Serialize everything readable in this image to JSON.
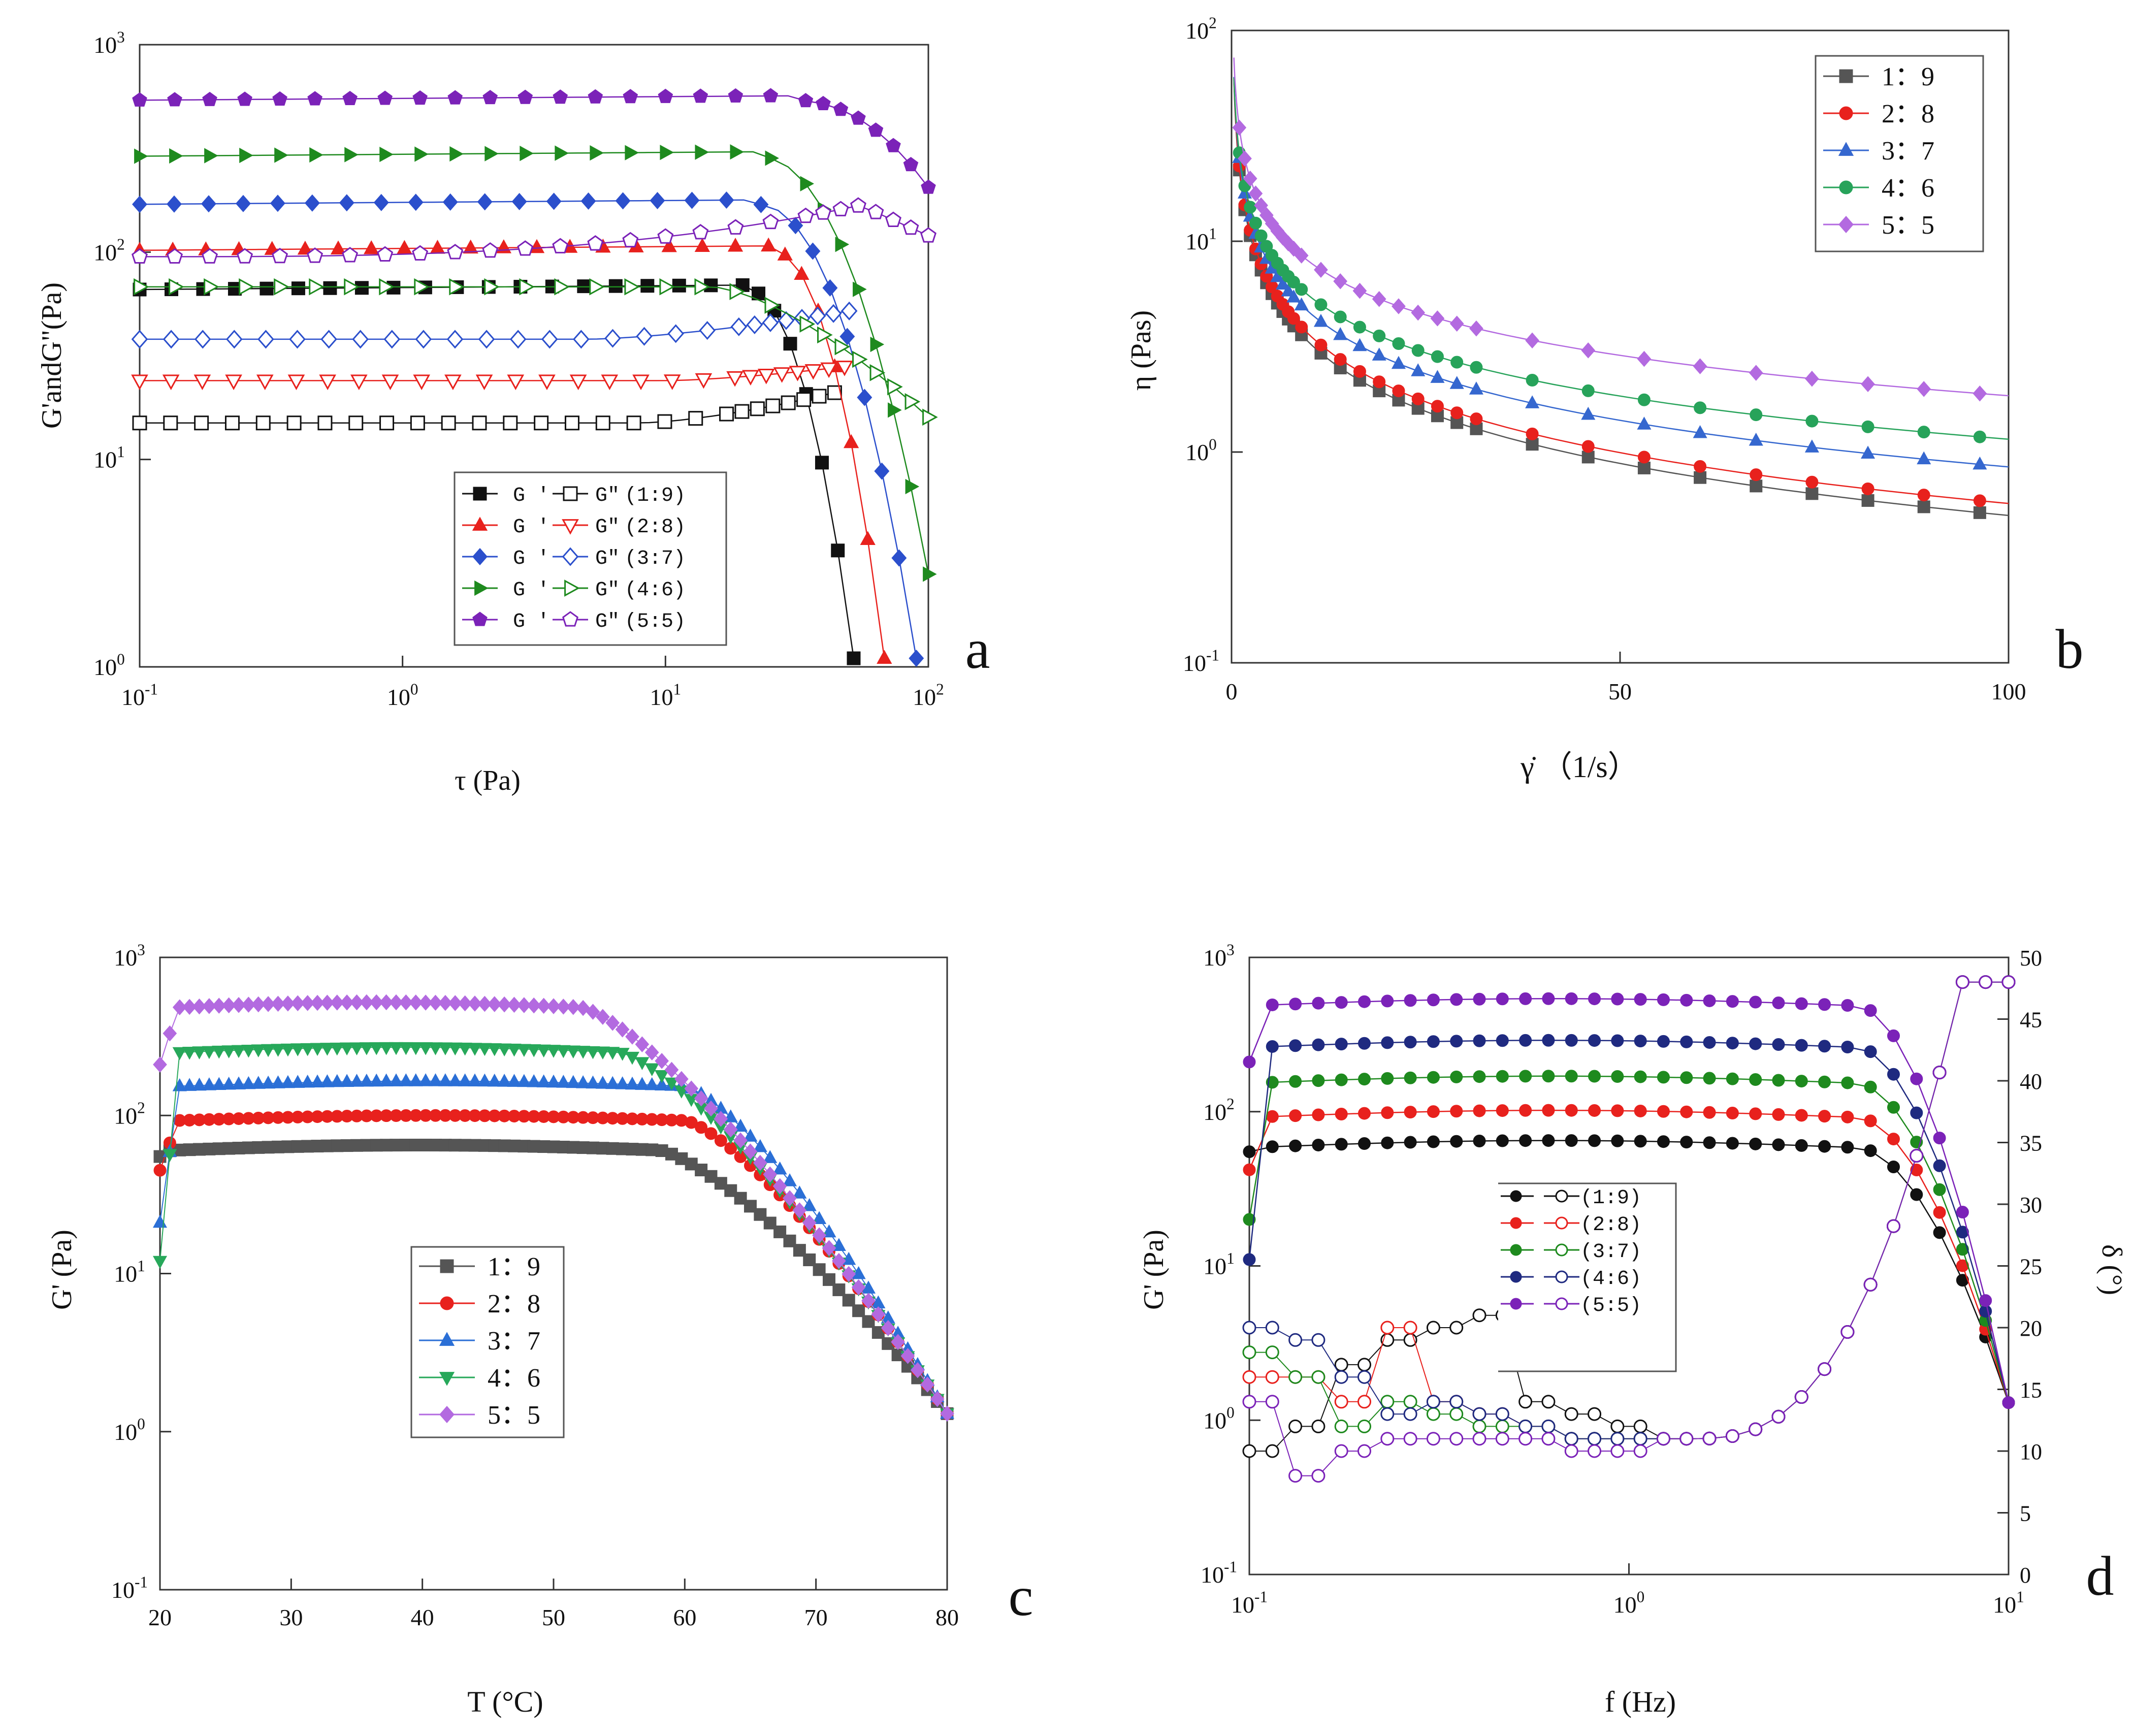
{
  "colors": {
    "black": "#111111",
    "red": "#e8211d",
    "blue": "#2b4fcc",
    "green": "#1e8a1e",
    "purple": "#7b22b8",
    "gray": "#555555",
    "b_blue": "#3567cf",
    "b_green": "#27a35a",
    "b_violet": "#b36ae0",
    "c_blue": "#2b6fd6",
    "c_green": "#27a85a",
    "c_violet": "#b36ae0",
    "d_blue": "#1f2a80",
    "d_purple": "#7b22b8"
  },
  "chart_data": [
    {
      "panel": "a",
      "type": "scatter",
      "xscale": "log",
      "yscale": "log",
      "xlim": [
        0.1,
        100
      ],
      "ylim": [
        1,
        1000
      ],
      "x_ticks": [
        {
          "b": "10",
          "e": "-1"
        },
        {
          "b": "10",
          "e": "0"
        },
        {
          "b": "10",
          "e": "1"
        },
        {
          "b": "10",
          "e": "2"
        }
      ],
      "y_ticks": [
        {
          "b": "10",
          "e": "0"
        },
        {
          "b": "10",
          "e": "1"
        },
        {
          "b": "10",
          "e": "2"
        },
        {
          "b": "10",
          "e": "3"
        }
      ],
      "xlabel": "τ (Pa)",
      "ylabel": "G'andG\"(Pa)",
      "legend": [
        {
          "g1": "G '",
          "g2": "G\"",
          "ratio": "(1:9)",
          "color": "black"
        },
        {
          "g1": "G '",
          "g2": "G\"",
          "ratio": "(2:8)",
          "color": "red"
        },
        {
          "g1": "G '",
          "g2": "G\"",
          "ratio": "(3:7)",
          "color": "blue"
        },
        {
          "g1": "G '",
          "g2": "G\"",
          "ratio": "(4:6)",
          "color": "green"
        },
        {
          "g1": "G '",
          "g2": "G\"",
          "ratio": "(5:5)",
          "color": "purple"
        }
      ],
      "series": [
        {
          "name": "G' (1:9)",
          "color": "black",
          "marker": "square",
          "filled": true,
          "plateau": 66,
          "x_break": 20,
          "x_end": 52,
          "y_end": 1.1
        },
        {
          "name": "G\" (1:9)",
          "color": "black",
          "marker": "square",
          "filled": false,
          "plateau": 15,
          "x_break": 8,
          "x_end": 44,
          "y_end": 21
        },
        {
          "name": "G' (2:8)",
          "color": "red",
          "marker": "triangle-up",
          "filled": true,
          "plateau": 102,
          "x_break": 25,
          "x_end": 68,
          "y_end": 1.1
        },
        {
          "name": "G\" (2:8)",
          "color": "red",
          "marker": "triangle-down",
          "filled": false,
          "plateau": 24,
          "x_break": 10,
          "x_end": 48,
          "y_end": 28
        },
        {
          "name": "G' (3:7)",
          "color": "blue",
          "marker": "diamond",
          "filled": true,
          "plateau": 170,
          "x_break": 22,
          "x_end": 90,
          "y_end": 1.1
        },
        {
          "name": "G\" (3:7)",
          "color": "blue",
          "marker": "diamond",
          "filled": false,
          "plateau": 38,
          "x_break": 5,
          "x_end": 50,
          "y_end": 52
        },
        {
          "name": "G' (4:6)",
          "color": "green",
          "marker": "triangle-right",
          "filled": true,
          "plateau": 290,
          "x_break": 22,
          "x_end": 100,
          "y_end": 2.8
        },
        {
          "name": "G\" (4:6)",
          "color": "green",
          "marker": "triangle-right",
          "filled": false,
          "plateau": 68,
          "x_break": 15,
          "x_end": 100,
          "y_end": 16
        },
        {
          "name": "G' (5:5)",
          "color": "purple",
          "marker": "pentagon",
          "filled": true,
          "plateau": 540,
          "x_break": 30,
          "x_end": 100,
          "y_end": 205
        },
        {
          "name": "G\" (5:5)",
          "color": "purple",
          "marker": "pentagon",
          "filled": false,
          "plateau": 95,
          "x_break": 2,
          "x_end": 100,
          "y_end": 120,
          "peak": 168,
          "x_peak": 55
        }
      ]
    },
    {
      "panel": "b",
      "type": "scatter",
      "xscale": "linear",
      "yscale": "log",
      "xlim": [
        0,
        100
      ],
      "ylim": [
        0.1,
        100
      ],
      "x_ticks": [
        "0",
        "50",
        "100"
      ],
      "y_ticks": [
        {
          "b": "10",
          "e": "-1"
        },
        {
          "b": "10",
          "e": "0"
        },
        {
          "b": "10",
          "e": "1"
        },
        {
          "b": "10",
          "e": "2"
        }
      ],
      "xlabel": "γ̇ （1/s）",
      "ylabel": "η (Pas)",
      "legend": [
        {
          "label": "1：9",
          "color": "gray"
        },
        {
          "label": "2：8",
          "color": "red"
        },
        {
          "label": "3：7",
          "color": "b_blue"
        },
        {
          "label": "4：6",
          "color": "b_green"
        },
        {
          "label": "5：5",
          "color": "b_violet"
        }
      ],
      "series": [
        {
          "name": "1：9",
          "color": "gray",
          "marker": "square",
          "eta_at_10": 3.3,
          "eta_at_100": 0.5
        },
        {
          "name": "2：8",
          "color": "red",
          "marker": "circle",
          "eta_at_10": 3.6,
          "eta_at_100": 0.57
        },
        {
          "name": "3：7",
          "color": "b_blue",
          "marker": "triangle-up",
          "eta_at_10": 4.6,
          "eta_at_100": 0.85
        },
        {
          "name": "4：6",
          "color": "b_green",
          "marker": "circle",
          "eta_at_10": 5.5,
          "eta_at_100": 1.15
        },
        {
          "name": "5：5",
          "color": "b_violet",
          "marker": "diamond",
          "eta_at_10": 8.0,
          "eta_at_100": 1.85
        }
      ]
    },
    {
      "panel": "c",
      "type": "scatter",
      "xscale": "linear",
      "yscale": "log",
      "xlim": [
        20,
        80
      ],
      "ylim": [
        0.1,
        1000
      ],
      "x_ticks": [
        "20",
        "30",
        "40",
        "50",
        "60",
        "70",
        "80"
      ],
      "y_ticks": [
        {
          "b": "10",
          "e": "-1"
        },
        {
          "b": "10",
          "e": "0"
        },
        {
          "b": "10",
          "e": "1"
        },
        {
          "b": "10",
          "e": "2"
        },
        {
          "b": "10",
          "e": "3"
        }
      ],
      "xlabel": "T (°C)",
      "ylabel": "G' (Pa)",
      "legend": [
        {
          "label": "1：9",
          "color": "gray"
        },
        {
          "label": "2：8",
          "color": "red"
        },
        {
          "label": "3：7",
          "color": "c_blue"
        },
        {
          "label": "4：6",
          "color": "c_green"
        },
        {
          "label": "5：5",
          "color": "c_violet"
        }
      ],
      "series": [
        {
          "name": "1：9",
          "color": "gray",
          "marker": "square",
          "start": 55,
          "plateau": 65,
          "t_break": 58
        },
        {
          "name": "2：8",
          "color": "red",
          "marker": "circle",
          "start": 45,
          "plateau": 100,
          "t_break": 60
        },
        {
          "name": "3：7",
          "color": "c_blue",
          "marker": "triangle-up",
          "start": 21,
          "plateau": 165,
          "t_break": 60
        },
        {
          "name": "4：6",
          "color": "c_green",
          "marker": "triangle-down",
          "start": 12,
          "plateau": 270,
          "t_break": 55
        },
        {
          "name": "5：5",
          "color": "c_violet",
          "marker": "diamond",
          "start": 210,
          "plateau": 520,
          "t_break": 52
        }
      ]
    },
    {
      "panel": "d",
      "type": "scatter",
      "xscale": "log",
      "yscale": "log",
      "xlim": [
        0.1,
        10
      ],
      "ylim": [
        0.1,
        1000
      ],
      "y2lim": [
        0,
        50
      ],
      "x_ticks": [
        {
          "b": "10",
          "e": "-1"
        },
        {
          "b": "10",
          "e": "0"
        },
        {
          "b": "10",
          "e": "1"
        }
      ],
      "y_ticks": [
        {
          "b": "10",
          "e": "-1"
        },
        {
          "b": "10",
          "e": "0"
        },
        {
          "b": "10",
          "e": "1"
        },
        {
          "b": "10",
          "e": "2"
        },
        {
          "b": "10",
          "e": "3"
        }
      ],
      "y2_ticks": [
        "0",
        "5",
        "10",
        "15",
        "20",
        "25",
        "30",
        "35",
        "40",
        "45",
        "50"
      ],
      "xlabel": "f (Hz)",
      "ylabel": "G' (Pa)",
      "y2label": "δ (°)",
      "legend": [
        {
          "label": "(1:9)",
          "color": "black"
        },
        {
          "label": "(2:8)",
          "color": "red"
        },
        {
          "label": "(3:7)",
          "color": "green"
        },
        {
          "label": "(4:6)",
          "color": "d_blue"
        },
        {
          "label": "(5:5)",
          "color": "d_purple"
        }
      ],
      "series": [
        {
          "name": "G' (1:9)",
          "color": "black",
          "plateau": 65,
          "start": 55
        },
        {
          "name": "G' (2:8)",
          "color": "red",
          "plateau": 102,
          "start": 42
        },
        {
          "name": "G' (3:7)",
          "color": "green",
          "plateau": 170,
          "start": 20
        },
        {
          "name": "G' (4:6)",
          "color": "d_blue",
          "plateau": 290,
          "start": 11
        },
        {
          "name": "G' (5:5)",
          "color": "d_purple",
          "plateau": 540,
          "start": 210
        },
        {
          "name": "δ (1:9)",
          "color": "black",
          "axis": "right",
          "values": [
            10,
            12,
            17,
            19,
            20,
            21,
            14,
            13,
            12,
            11
          ]
        },
        {
          "name": "δ (2:8)",
          "color": "red",
          "axis": "right",
          "values": [
            16,
            16,
            14,
            20,
            14,
            13,
            12,
            11,
            11,
            11
          ]
        },
        {
          "name": "δ (3:7)",
          "color": "green",
          "axis": "right",
          "values": [
            18,
            16,
            12,
            14,
            13,
            12,
            12,
            11,
            11,
            11
          ]
        },
        {
          "name": "δ (4:6)",
          "color": "d_blue",
          "axis": "right",
          "values": [
            20,
            19,
            16,
            13,
            14,
            13,
            12,
            11,
            11,
            11
          ]
        },
        {
          "name": "δ (5:5)",
          "color": "d_purple",
          "axis": "right",
          "values": [
            14,
            8,
            10,
            11,
            11,
            11,
            11,
            10,
            10,
            11
          ]
        }
      ]
    }
  ],
  "panel_letters": [
    "a",
    "b",
    "c",
    "d"
  ]
}
